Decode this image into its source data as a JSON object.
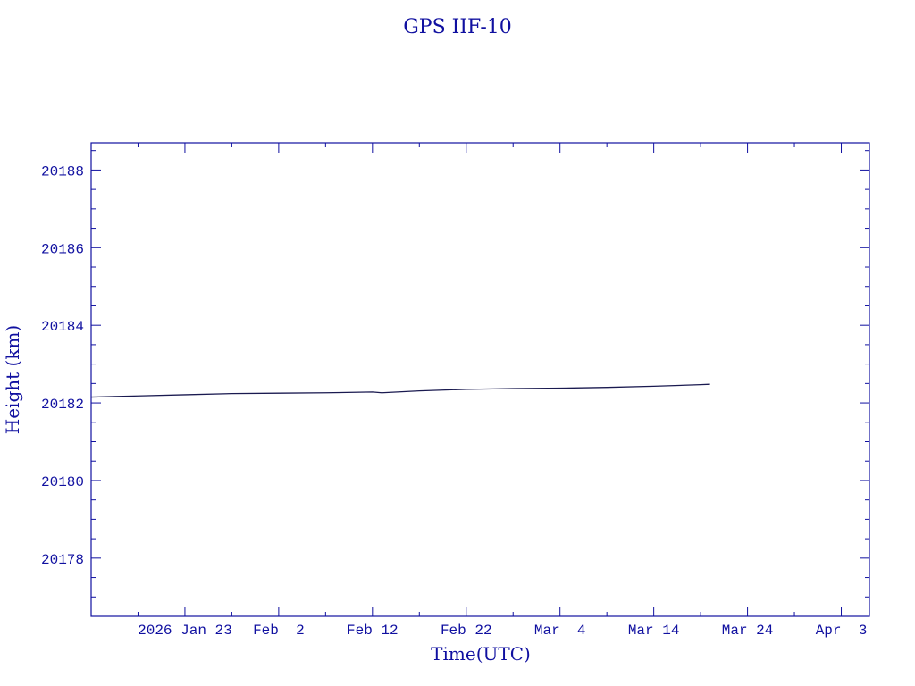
{
  "chart_data": {
    "type": "line",
    "title": "GPS IIF-10",
    "xlabel": "Time(UTC)",
    "ylabel": "Height (km)",
    "x_is_date": true,
    "xlim": [
      "2026-01-13",
      "2026-04-06"
    ],
    "ylim": [
      20176.5,
      20188.7
    ],
    "x_ticks": [
      {
        "date": "2026-01-23",
        "label": "2026 Jan 23"
      },
      {
        "date": "2026-02-02",
        "label": "Feb  2"
      },
      {
        "date": "2026-02-12",
        "label": "Feb 12"
      },
      {
        "date": "2026-02-22",
        "label": "Feb 22"
      },
      {
        "date": "2026-03-04",
        "label": "Mar  4"
      },
      {
        "date": "2026-03-14",
        "label": "Mar 14"
      },
      {
        "date": "2026-03-24",
        "label": "Mar 24"
      },
      {
        "date": "2026-04-03",
        "label": "Apr  3"
      }
    ],
    "x_minor_ticks": [
      "2026-01-18",
      "2026-01-28",
      "2026-02-07",
      "2026-02-17",
      "2026-02-27",
      "2026-03-09",
      "2026-03-19",
      "2026-03-29"
    ],
    "y_ticks": [
      {
        "value": 20178,
        "label": "20178"
      },
      {
        "value": 20180,
        "label": "20180"
      },
      {
        "value": 20182,
        "label": "20182"
      },
      {
        "value": 20184,
        "label": "20184"
      },
      {
        "value": 20186,
        "label": "20186"
      },
      {
        "value": 20188,
        "label": "20188"
      }
    ],
    "y_minor_step": 0.5,
    "grid": false,
    "series": [
      {
        "color": "#1a1a50",
        "points": [
          {
            "x": "2026-01-13",
            "y": 20182.15
          },
          {
            "x": "2026-01-18",
            "y": 20182.18
          },
          {
            "x": "2026-01-23",
            "y": 20182.21
          },
          {
            "x": "2026-01-28",
            "y": 20182.24
          },
          {
            "x": "2026-02-02",
            "y": 20182.25
          },
          {
            "x": "2026-02-07",
            "y": 20182.26
          },
          {
            "x": "2026-02-12",
            "y": 20182.28
          },
          {
            "x": "2026-02-13",
            "y": 20182.26
          },
          {
            "x": "2026-02-17",
            "y": 20182.31
          },
          {
            "x": "2026-02-22",
            "y": 20182.35
          },
          {
            "x": "2026-02-27",
            "y": 20182.37
          },
          {
            "x": "2026-03-04",
            "y": 20182.38
          },
          {
            "x": "2026-03-09",
            "y": 20182.4
          },
          {
            "x": "2026-03-14",
            "y": 20182.43
          },
          {
            "x": "2026-03-19",
            "y": 20182.47
          },
          {
            "x": "2026-03-20",
            "y": 20182.48
          }
        ]
      }
    ],
    "colors": {
      "axis": "#1010a0",
      "text": "#1010a0"
    }
  }
}
